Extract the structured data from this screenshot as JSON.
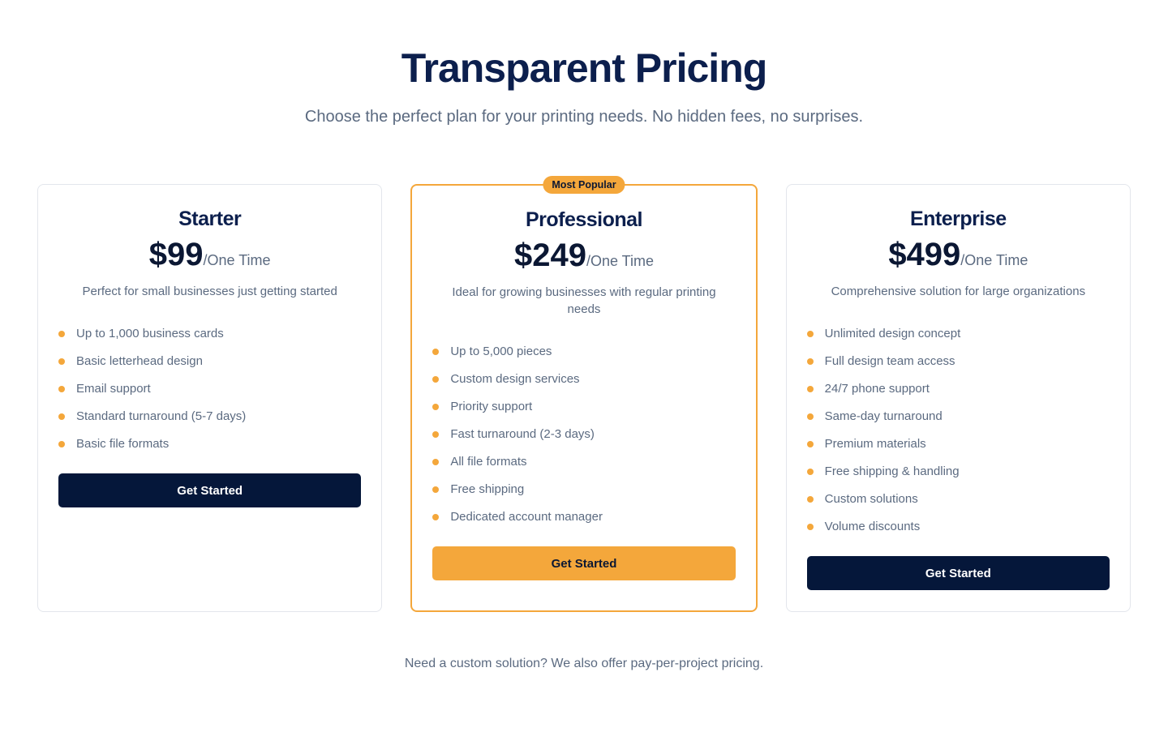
{
  "header": {
    "title": "Transparent Pricing",
    "subtitle": "Choose the perfect plan for your printing needs. No hidden fees, no surprises."
  },
  "colors": {
    "accent": "#f4a73b",
    "navy": "#05173a"
  },
  "plans": [
    {
      "name": "Starter",
      "price": "$99",
      "period": "/One Time",
      "description": "Perfect for small businesses just getting started",
      "features": [
        "Up to 1,000 business cards",
        "Basic letterhead design",
        "Email support",
        "Standard turnaround (5-7 days)",
        "Basic file formats"
      ],
      "cta": "Get Started"
    },
    {
      "name": "Professional",
      "badge": "Most Popular",
      "price": "$249",
      "period": "/One Time",
      "description": "Ideal for growing businesses with regular printing needs",
      "features": [
        "Up to 5,000 pieces",
        "Custom design services",
        "Priority support",
        "Fast turnaround (2-3 days)",
        "All file formats",
        "Free shipping",
        "Dedicated account manager"
      ],
      "cta": "Get Started"
    },
    {
      "name": "Enterprise",
      "price": "$499",
      "period": "/One Time",
      "description": "Comprehensive solution for large organizations",
      "features": [
        "Unlimited design concept",
        "Full design team access",
        "24/7 phone support",
        "Same-day turnaround",
        "Premium materials",
        "Free shipping & handling",
        "Custom solutions",
        "Volume discounts"
      ],
      "cta": "Get Started"
    }
  ],
  "footer": {
    "text": "Need a custom solution? We also offer pay-per-project pricing."
  }
}
